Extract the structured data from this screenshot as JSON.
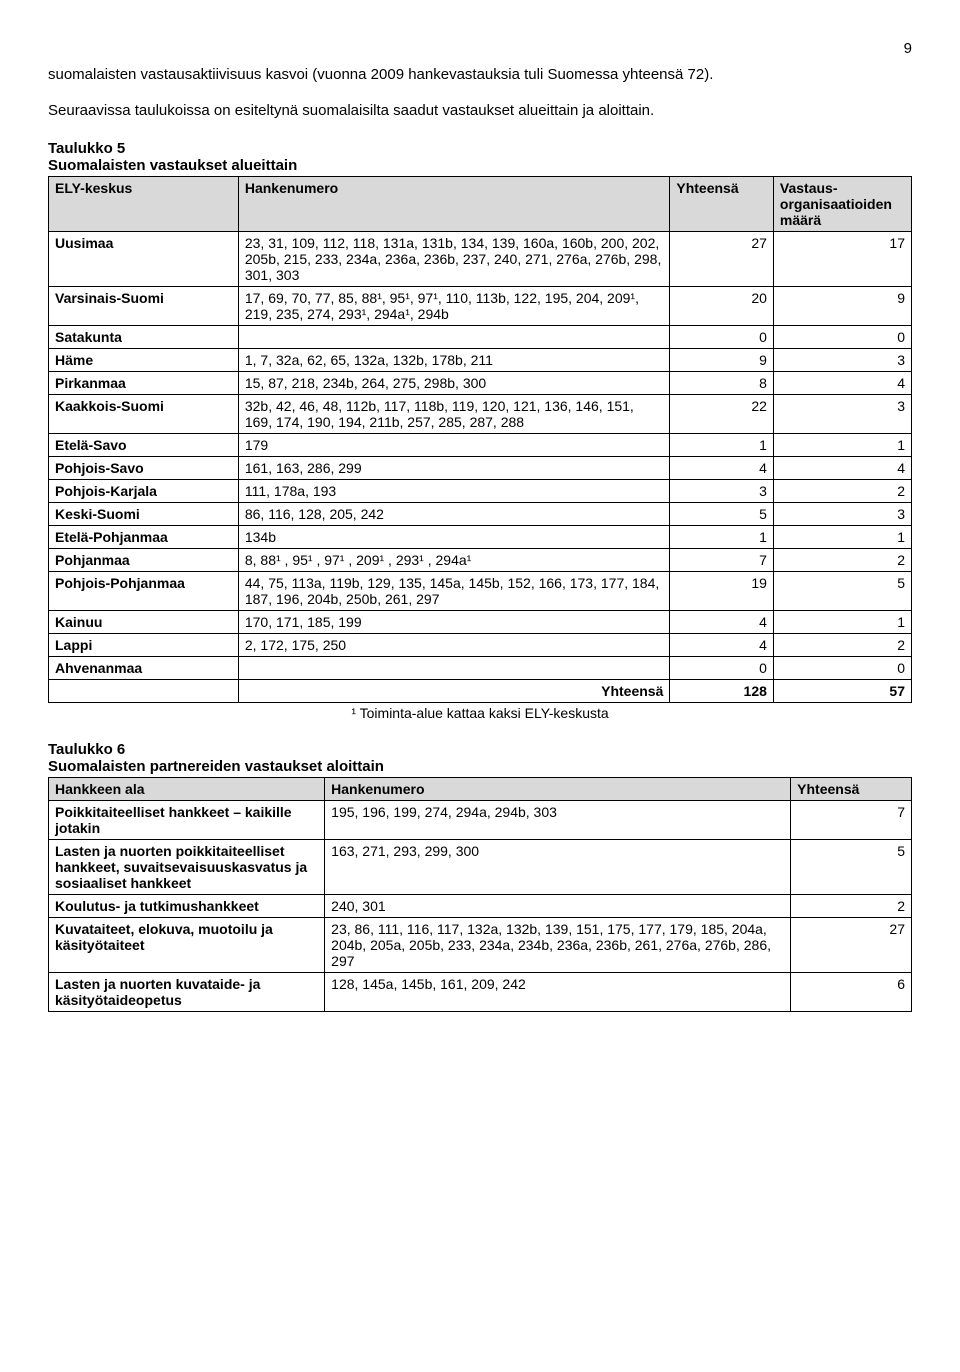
{
  "page_number": "9",
  "intro_para1": "suomalaisten vastausaktiivisuus kasvoi (vuonna 2009 hankevastauksia tuli Suomessa yhteensä 72).",
  "intro_para2": "Seuraavissa taulukoissa on esiteltynä suomalaisilta saadut vastaukset alueittain ja aloittain.",
  "table5": {
    "title": "Taulukko 5",
    "subtitle": "Suomalaisten vastaukset alueittain",
    "headers": {
      "col1": "ELY-keskus",
      "col2": "Hankenumero",
      "col3": "Yhteensä",
      "col4": "Vastaus-organisaatioiden määrä"
    },
    "col_widths": [
      "22%",
      "50%",
      "12%",
      "16%"
    ],
    "header_bg": "#d9d9d9",
    "rows": [
      {
        "label": "Uusimaa",
        "nums": "23, 31, 109, 112, 118, 131a, 131b, 134, 139, 160a, 160b, 200, 202, 205b, 215, 233, 234a, 236a, 236b, 237, 240, 271, 276a, 276b, 298, 301, 303",
        "yht": "27",
        "org": "17"
      },
      {
        "label": "Varsinais-Suomi",
        "nums": "17, 69, 70, 77, 85, 88¹, 95¹, 97¹, 110, 113b, 122, 195, 204, 209¹, 219, 235, 274, 293¹, 294a¹, 294b",
        "yht": "20",
        "org": "9"
      },
      {
        "label": "Satakunta",
        "nums": "",
        "yht": "0",
        "org": "0"
      },
      {
        "label": "Häme",
        "nums": "1, 7, 32a, 62, 65, 132a, 132b, 178b, 211",
        "yht": "9",
        "org": "3"
      },
      {
        "label": "Pirkanmaa",
        "nums": "15, 87, 218, 234b, 264, 275, 298b, 300",
        "yht": "8",
        "org": "4"
      },
      {
        "label": "Kaakkois-Suomi",
        "nums": "32b, 42, 46, 48, 112b, 117, 118b, 119, 120, 121, 136, 146, 151, 169, 174, 190, 194, 211b, 257, 285, 287, 288",
        "yht": "22",
        "org": "3"
      },
      {
        "label": "Etelä-Savo",
        "nums": "179",
        "yht": "1",
        "org": "1"
      },
      {
        "label": "Pohjois-Savo",
        "nums": "161, 163, 286, 299",
        "yht": "4",
        "org": "4"
      },
      {
        "label": "Pohjois-Karjala",
        "nums": "111, 178a, 193",
        "yht": "3",
        "org": "2"
      },
      {
        "label": "Keski-Suomi",
        "nums": "86, 116, 128, 205, 242",
        "yht": "5",
        "org": "3"
      },
      {
        "label": "Etelä-Pohjanmaa",
        "nums": "134b",
        "yht": "1",
        "org": "1"
      },
      {
        "label": "Pohjanmaa",
        "nums": "8, 88¹ , 95¹ , 97¹ , 209¹ , 293¹ , 294a¹",
        "yht": "7",
        "org": "2"
      },
      {
        "label": "Pohjois-Pohjanmaa",
        "nums": "44, 75, 113a, 119b, 129, 135, 145a, 145b, 152, 166, 173, 177, 184, 187, 196, 204b, 250b, 261, 297",
        "yht": "19",
        "org": "5"
      },
      {
        "label": "Kainuu",
        "nums": "170, 171, 185, 199",
        "yht": "4",
        "org": "1"
      },
      {
        "label": "Lappi",
        "nums": "2, 172, 175, 250",
        "yht": "4",
        "org": "2"
      },
      {
        "label": "Ahvenanmaa",
        "nums": "",
        "yht": "0",
        "org": "0"
      }
    ],
    "total": {
      "label": "Yhteensä",
      "yht": "128",
      "org": "57"
    },
    "footnote": "¹ Toiminta-alue kattaa kaksi ELY-keskusta"
  },
  "table6": {
    "title": "Taulukko 6",
    "subtitle": "Suomalaisten partnereiden vastaukset aloittain",
    "headers": {
      "col1": "Hankkeen ala",
      "col2": "Hankenumero",
      "col3": "Yhteensä"
    },
    "col_widths": [
      "32%",
      "54%",
      "14%"
    ],
    "header_bg": "#d9d9d9",
    "rows": [
      {
        "label": "Poikkitaiteelliset hankkeet – kaikille jotakin",
        "nums": "195, 196, 199, 274, 294a, 294b, 303",
        "yht": "7"
      },
      {
        "label": "Lasten ja nuorten poikkitaiteelliset hankkeet, suvaitsevaisuuskasvatus ja sosiaaliset hankkeet",
        "nums": "163, 271, 293, 299, 300",
        "yht": "5"
      },
      {
        "label": "Koulutus- ja tutkimushankkeet",
        "nums": "240, 301",
        "yht": "2"
      },
      {
        "label": "Kuvataiteet, elokuva, muotoilu ja käsityötaiteet",
        "nums": "23, 86, 111, 116, 117, 132a, 132b, 139, 151, 175, 177, 179, 185, 204a, 204b, 205a, 205b, 233, 234a, 234b, 236a, 236b, 261, 276a, 276b, 286, 297",
        "yht": "27"
      },
      {
        "label": "Lasten ja nuorten kuvataide- ja käsityötaideopetus",
        "nums": "128, 145a, 145b, 161, 209, 242",
        "yht": "6"
      }
    ]
  }
}
